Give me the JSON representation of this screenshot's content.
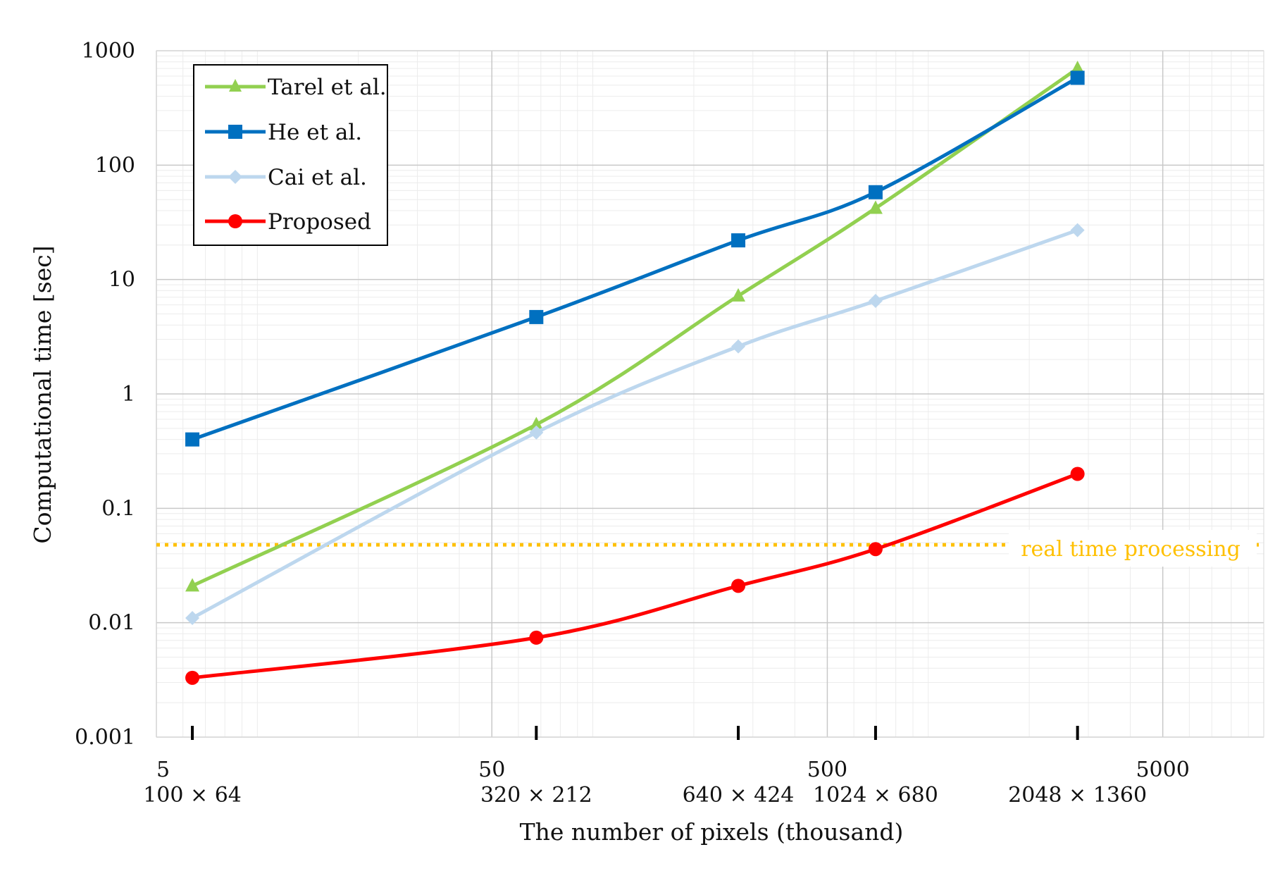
{
  "chart_data": {
    "type": "line",
    "xlabel": "The number of pixels (thousand)",
    "ylabel": "Computational time  [sec]",
    "x_scale": "log",
    "y_scale": "log",
    "xlim": [
      5,
      10000
    ],
    "ylim": [
      0.001,
      1000
    ],
    "x_ticks": [
      "5",
      "50",
      "500",
      "5000"
    ],
    "y_ticks": [
      "0.001",
      "0.01",
      "0.1",
      "1",
      "10",
      "100",
      "1000"
    ],
    "image_sizes": [
      "100 × 64",
      "320 × 212",
      "640 × 424",
      "1024 × 680",
      "2048 × 1360"
    ],
    "x": [
      6.4,
      67.84,
      271.36,
      696.32,
      2785.28
    ],
    "grid": true,
    "legend_position": "top-left",
    "series": [
      {
        "name": "Tarel et al.",
        "color": "#92d050",
        "marker": "triangle",
        "values": [
          0.021,
          0.54,
          7.2,
          42,
          700
        ]
      },
      {
        "name": "He et al.",
        "color": "#0070c0",
        "marker": "square",
        "values": [
          0.4,
          4.7,
          22,
          58,
          580
        ]
      },
      {
        "name": "Cai et al.",
        "color": "#bdd7ee",
        "marker": "diamond",
        "values": [
          0.011,
          0.46,
          2.6,
          6.5,
          27
        ]
      },
      {
        "name": "Proposed",
        "color": "#ff0000",
        "marker": "circle",
        "values": [
          0.0033,
          0.0074,
          0.021,
          0.044,
          0.2
        ]
      }
    ],
    "reference_line": {
      "label": "real time processing",
      "y": 0.048,
      "color": "#ffc000",
      "style": "dotted"
    }
  }
}
